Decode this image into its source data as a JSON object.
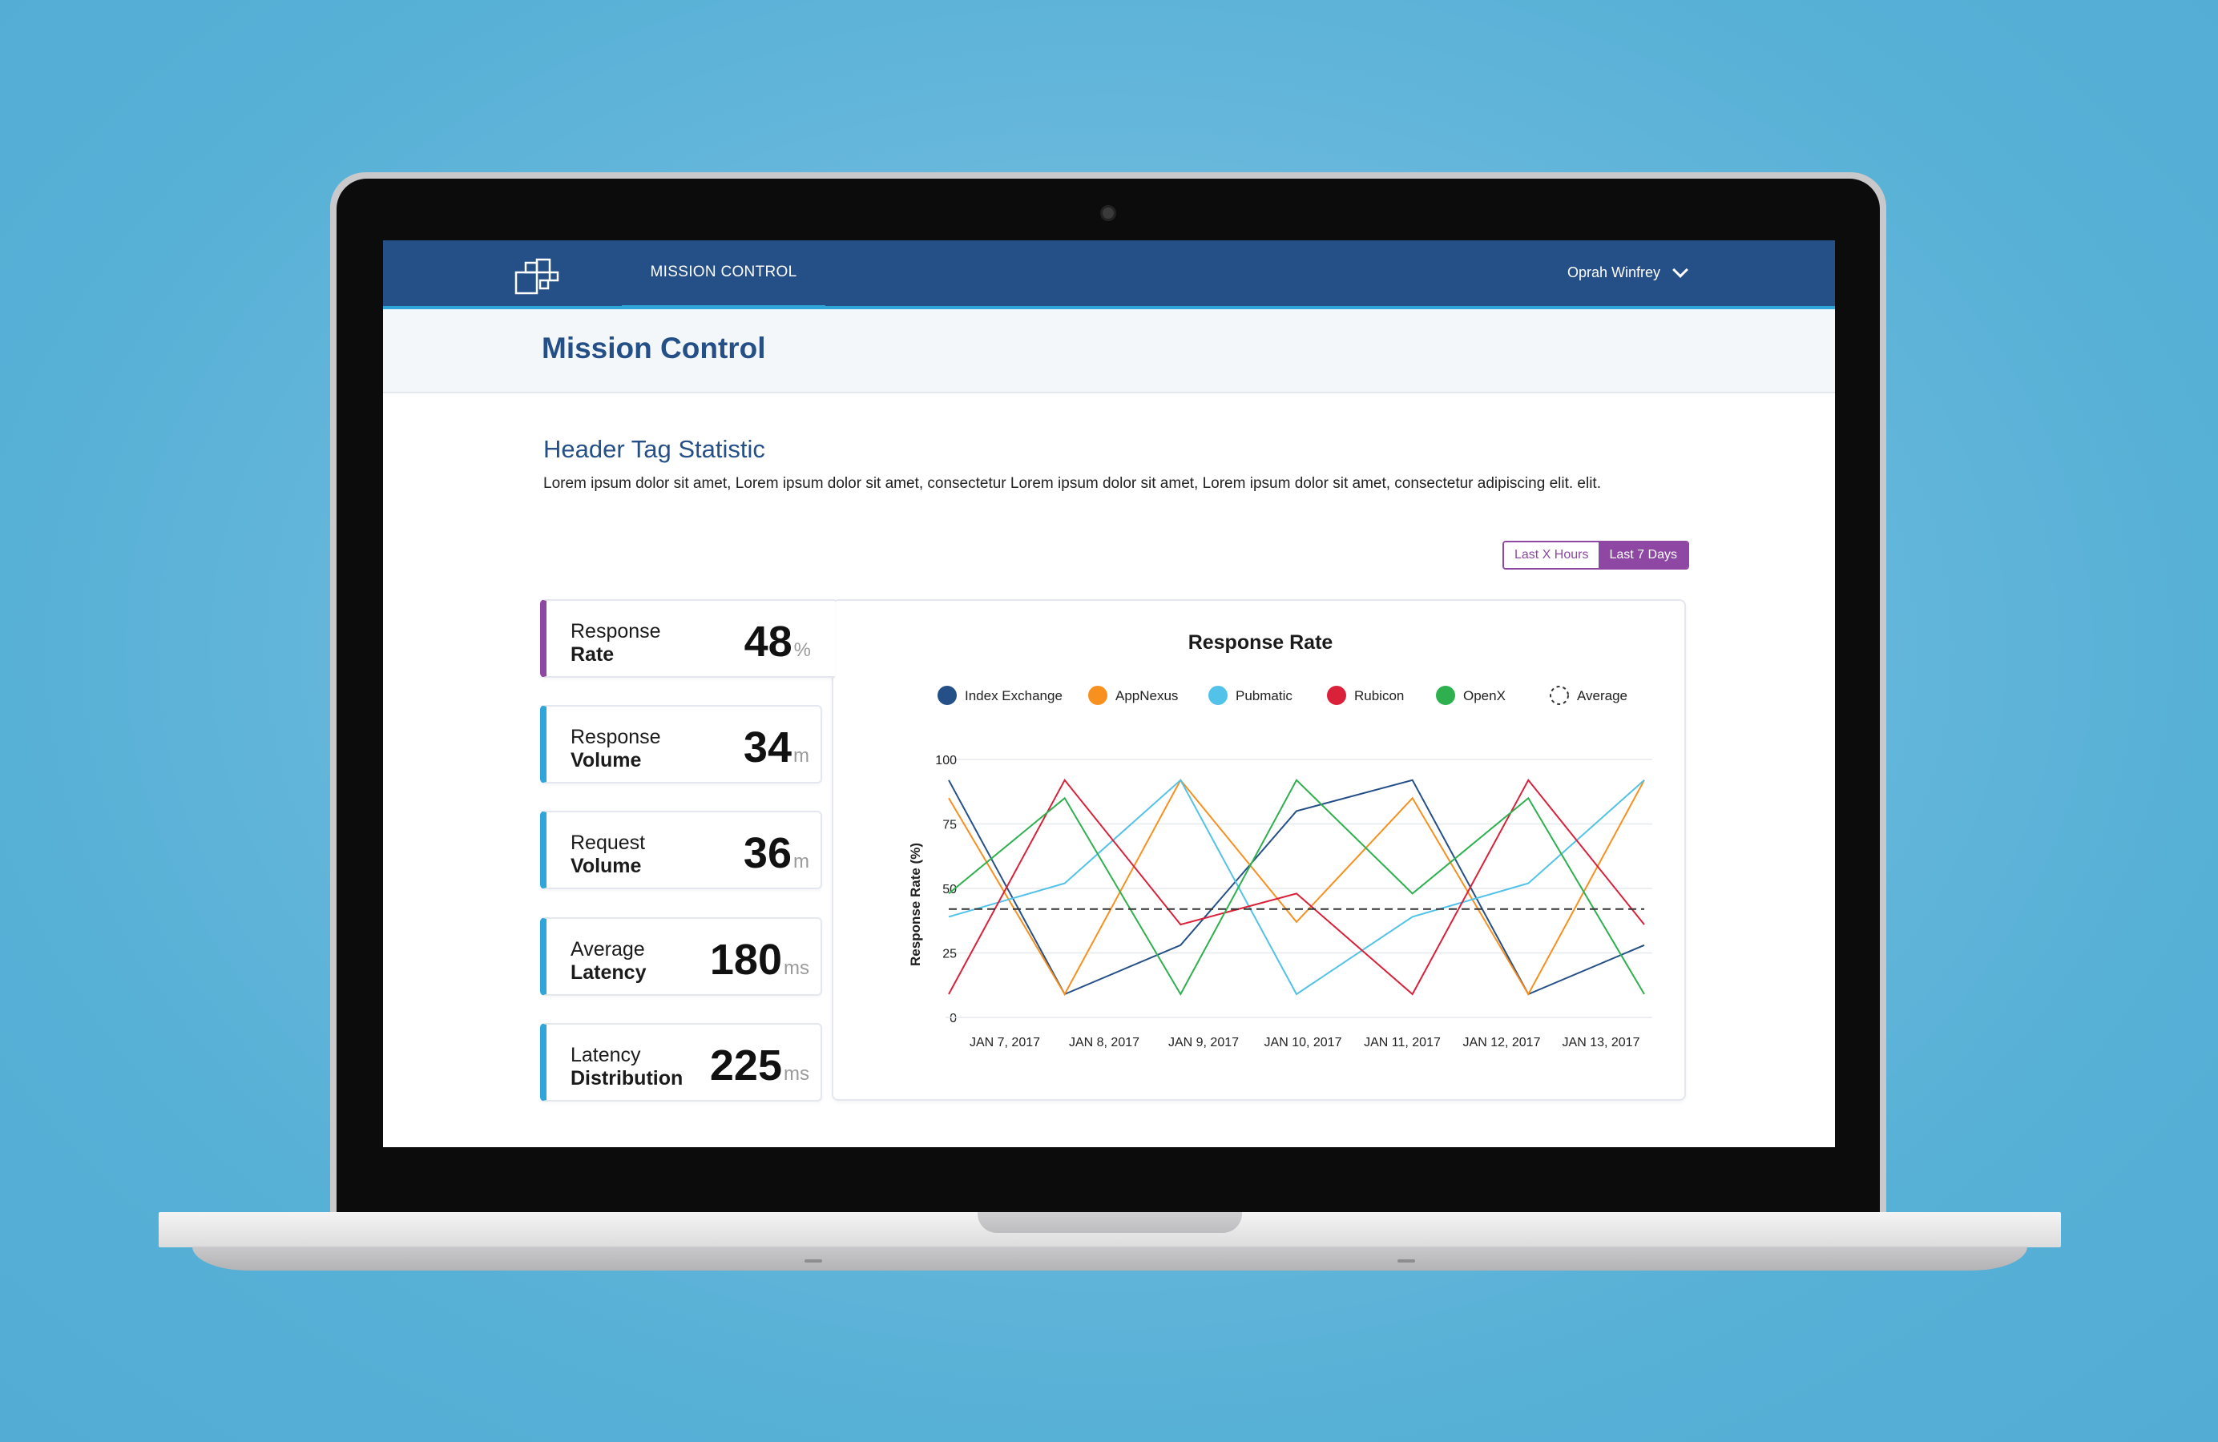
{
  "topbar": {
    "nav_tab": "MISSION CONTROL",
    "user_name": "Oprah Winfrey"
  },
  "page": {
    "title": "Mission Control"
  },
  "section": {
    "title": "Header Tag Statistic",
    "description": "Lorem ipsum dolor sit amet, Lorem ipsum dolor sit amet, consectetur Lorem ipsum dolor sit amet, Lorem ipsum dolor sit amet, consectetur adipiscing elit. elit."
  },
  "range_toggle": {
    "options": [
      "Last X Hours",
      "Last 7 Days"
    ],
    "selected": "Last 7 Days"
  },
  "stats": [
    {
      "label_line1": "Response",
      "label_line2": "Rate",
      "value": "48",
      "unit": "%"
    },
    {
      "label_line1": "Response",
      "label_line2": "Volume",
      "value": "34",
      "unit": "m"
    },
    {
      "label_line1": "Request",
      "label_line2": "Volume",
      "value": "36",
      "unit": "m"
    },
    {
      "label_line1": "Average",
      "label_line2": "Latency",
      "value": "180",
      "unit": "ms"
    },
    {
      "label_line1": "Latency",
      "label_line2": "Distribution",
      "value": "225",
      "unit": "ms"
    }
  ],
  "colors": {
    "brand_blue": "#244f87",
    "accent_cyan": "#2fa6d9",
    "accent_purple": "#8e47a3"
  },
  "chart_data": {
    "type": "line",
    "title": "Response Rate",
    "ylabel": "Response Rate (%)",
    "xlabel": "",
    "ylim": [
      0,
      100
    ],
    "yticks": [
      0,
      25,
      50,
      75,
      100
    ],
    "grid": true,
    "legend_position": "top",
    "categories": [
      "JAN 7, 2017",
      "JAN 8, 2017",
      "JAN 9, 2017",
      "JAN 10, 2017",
      "JAN 11, 2017",
      "JAN 12, 2017",
      "JAN 13, 2017"
    ],
    "series": [
      {
        "name": "Index Exchange",
        "color": "#244f87",
        "values": [
          92,
          9,
          28,
          80,
          92,
          9,
          28
        ]
      },
      {
        "name": "AppNexus",
        "color": "#f7901e",
        "values": [
          85,
          9,
          92,
          37,
          85,
          9,
          92
        ]
      },
      {
        "name": "Pubmatic",
        "color": "#52c2e8",
        "values": [
          39,
          52,
          92,
          9,
          39,
          52,
          92
        ]
      },
      {
        "name": "Rubicon",
        "color": "#d9213a",
        "values": [
          9,
          92,
          36,
          48,
          9,
          92,
          36
        ]
      },
      {
        "name": "OpenX",
        "color": "#2eb04f",
        "values": [
          48,
          85,
          9,
          92,
          48,
          85,
          9
        ]
      },
      {
        "name": "Average",
        "color": "#333333",
        "dashed": true,
        "values": [
          42,
          42,
          42,
          42,
          42,
          42,
          42
        ]
      }
    ]
  }
}
